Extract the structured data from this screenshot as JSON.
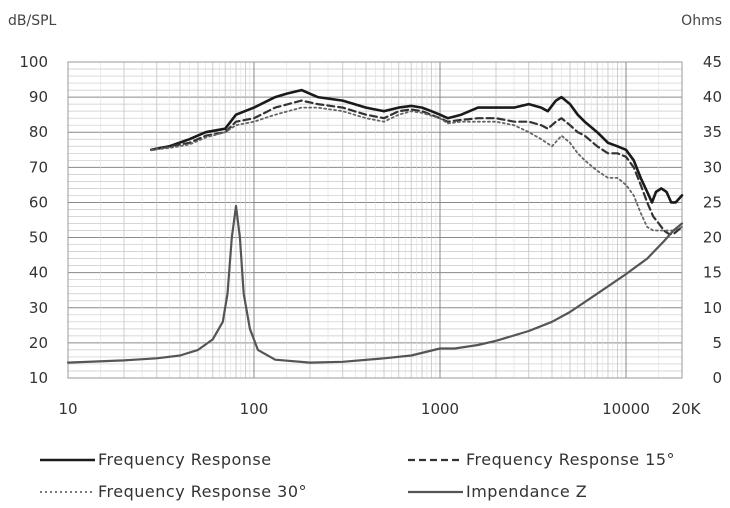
{
  "chart_data": {
    "type": "line",
    "xlabel": "",
    "ylabel_left": "dB/SPL",
    "ylabel_right": "Ohms",
    "x_scale": "log",
    "xlim": [
      10,
      20000
    ],
    "ylim_left": [
      10,
      100
    ],
    "ylim_right": [
      0,
      45
    ],
    "x_ticks": [
      {
        "value": 10,
        "label": "10"
      },
      {
        "value": 100,
        "label": "100"
      },
      {
        "value": 1000,
        "label": "1000"
      },
      {
        "value": 10000,
        "label": "10000"
      },
      {
        "value": 20000,
        "label": "20K"
      }
    ],
    "y_ticks_left": [
      "10",
      "20",
      "30",
      "40",
      "50",
      "60",
      "70",
      "80",
      "90",
      "100"
    ],
    "y_ticks_right": [
      "0",
      "5",
      "10",
      "15",
      "20",
      "25",
      "30",
      "35",
      "40",
      "45"
    ],
    "grid": true,
    "legend_position": "bottom",
    "series": [
      {
        "name": "Frequency Response",
        "axis": "left",
        "style": "solid",
        "color": "#1a1a1a",
        "points": [
          [
            28,
            75
          ],
          [
            35,
            76
          ],
          [
            45,
            78
          ],
          [
            55,
            80
          ],
          [
            70,
            81
          ],
          [
            80,
            85
          ],
          [
            100,
            87
          ],
          [
            130,
            90
          ],
          [
            150,
            91
          ],
          [
            180,
            92
          ],
          [
            220,
            90
          ],
          [
            300,
            89
          ],
          [
            400,
            87
          ],
          [
            500,
            86
          ],
          [
            600,
            87
          ],
          [
            700,
            87.5
          ],
          [
            800,
            87
          ],
          [
            900,
            86
          ],
          [
            1000,
            85
          ],
          [
            1100,
            84
          ],
          [
            1300,
            85
          ],
          [
            1600,
            87
          ],
          [
            2000,
            87
          ],
          [
            2500,
            87
          ],
          [
            3000,
            88
          ],
          [
            3500,
            87
          ],
          [
            3800,
            86
          ],
          [
            4200,
            89
          ],
          [
            4500,
            90
          ],
          [
            5000,
            88
          ],
          [
            5500,
            85
          ],
          [
            6000,
            83
          ],
          [
            7000,
            80
          ],
          [
            8000,
            77
          ],
          [
            9000,
            76
          ],
          [
            10000,
            75
          ],
          [
            11000,
            72
          ],
          [
            12000,
            67
          ],
          [
            13000,
            63
          ],
          [
            13800,
            60
          ],
          [
            14500,
            63
          ],
          [
            15500,
            64
          ],
          [
            16500,
            63
          ],
          [
            17500,
            60
          ],
          [
            18500,
            60
          ],
          [
            20000,
            62
          ]
        ]
      },
      {
        "name": "Frequency Response 15°",
        "axis": "left",
        "style": "dashed",
        "color": "#333333",
        "points": [
          [
            28,
            75
          ],
          [
            35,
            76
          ],
          [
            45,
            77
          ],
          [
            55,
            79
          ],
          [
            70,
            80
          ],
          [
            80,
            83
          ],
          [
            100,
            84
          ],
          [
            130,
            87
          ],
          [
            180,
            89
          ],
          [
            220,
            88
          ],
          [
            300,
            87
          ],
          [
            400,
            85
          ],
          [
            500,
            84
          ],
          [
            600,
            86
          ],
          [
            700,
            86.5
          ],
          [
            800,
            86
          ],
          [
            1000,
            84
          ],
          [
            1100,
            83
          ],
          [
            1300,
            83.5
          ],
          [
            1600,
            84
          ],
          [
            2000,
            84
          ],
          [
            2500,
            83
          ],
          [
            3000,
            83
          ],
          [
            3500,
            82
          ],
          [
            3800,
            81
          ],
          [
            4200,
            83
          ],
          [
            4500,
            84
          ],
          [
            5000,
            82
          ],
          [
            5500,
            80
          ],
          [
            6000,
            79
          ],
          [
            7000,
            76
          ],
          [
            8000,
            74
          ],
          [
            9000,
            74
          ],
          [
            10000,
            73
          ],
          [
            11000,
            70
          ],
          [
            12000,
            65
          ],
          [
            13000,
            60
          ],
          [
            14000,
            56
          ],
          [
            15000,
            54
          ],
          [
            16000,
            52
          ],
          [
            17000,
            51
          ],
          [
            18000,
            51
          ],
          [
            20000,
            53
          ]
        ]
      },
      {
        "name": "Frequency Response 30°",
        "axis": "left",
        "style": "dotted",
        "color": "#666666",
        "points": [
          [
            28,
            75
          ],
          [
            35,
            75.5
          ],
          [
            45,
            76.5
          ],
          [
            55,
            78.5
          ],
          [
            70,
            80
          ],
          [
            80,
            82
          ],
          [
            100,
            83
          ],
          [
            130,
            85
          ],
          [
            180,
            87
          ],
          [
            220,
            87
          ],
          [
            300,
            86
          ],
          [
            400,
            84
          ],
          [
            500,
            83
          ],
          [
            600,
            85
          ],
          [
            700,
            86
          ],
          [
            800,
            85.5
          ],
          [
            1000,
            84
          ],
          [
            1100,
            82.5
          ],
          [
            1300,
            83
          ],
          [
            1600,
            83
          ],
          [
            2000,
            83
          ],
          [
            2500,
            82
          ],
          [
            3000,
            80
          ],
          [
            3500,
            78
          ],
          [
            4000,
            76
          ],
          [
            4500,
            79
          ],
          [
            5000,
            77
          ],
          [
            5500,
            74
          ],
          [
            6000,
            72
          ],
          [
            7000,
            69
          ],
          [
            8000,
            67
          ],
          [
            9000,
            67
          ],
          [
            10000,
            65
          ],
          [
            11000,
            62
          ],
          [
            12000,
            57
          ],
          [
            13000,
            53
          ],
          [
            14000,
            52
          ],
          [
            15000,
            52
          ],
          [
            16000,
            52
          ],
          [
            17000,
            52
          ],
          [
            18000,
            52
          ],
          [
            20000,
            53
          ]
        ]
      },
      {
        "name": "Impendance Z",
        "axis": "right",
        "style": "solid",
        "color": "#555555",
        "points": [
          [
            10,
            2.2
          ],
          [
            20,
            2.5
          ],
          [
            30,
            2.8
          ],
          [
            40,
            3.2
          ],
          [
            50,
            4
          ],
          [
            60,
            5.5
          ],
          [
            68,
            8
          ],
          [
            72,
            12
          ],
          [
            76,
            20
          ],
          [
            80,
            24.5
          ],
          [
            84,
            20
          ],
          [
            88,
            12
          ],
          [
            95,
            7
          ],
          [
            105,
            4
          ],
          [
            130,
            2.6
          ],
          [
            200,
            2.2
          ],
          [
            300,
            2.3
          ],
          [
            500,
            2.8
          ],
          [
            700,
            3.2
          ],
          [
            1000,
            4.2
          ],
          [
            1200,
            4.2
          ],
          [
            1600,
            4.7
          ],
          [
            2000,
            5.3
          ],
          [
            3000,
            6.7
          ],
          [
            4000,
            8
          ],
          [
            5000,
            9.4
          ],
          [
            7000,
            12
          ],
          [
            10000,
            14.8
          ],
          [
            13000,
            17
          ],
          [
            16000,
            19.5
          ],
          [
            18000,
            21
          ],
          [
            20000,
            22
          ]
        ]
      }
    ]
  }
}
